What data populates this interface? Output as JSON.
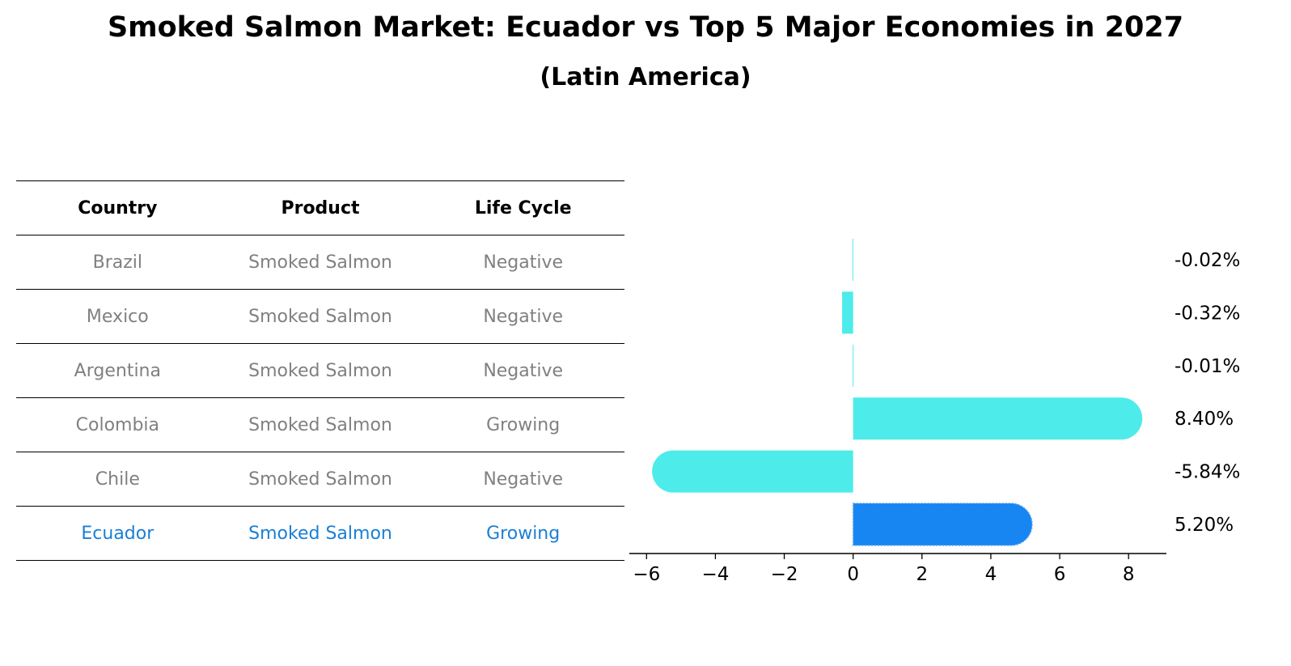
{
  "title": "Smoked Salmon Market: Ecuador vs Top 5 Major Economies in 2027",
  "subtitle": "(Latin America)",
  "colors": {
    "bar": "#4deceb",
    "highlight_bar": "#1785f2",
    "highlight_text": "#1a7fd6",
    "muted_text": "#808080"
  },
  "table": {
    "headers": [
      "Country",
      "Product",
      "Life Cycle"
    ],
    "rows": [
      {
        "country": "Brazil",
        "product": "Smoked Salmon",
        "life_cycle": "Negative"
      },
      {
        "country": "Mexico",
        "product": "Smoked Salmon",
        "life_cycle": "Negative"
      },
      {
        "country": "Argentina",
        "product": "Smoked Salmon",
        "life_cycle": "Negative"
      },
      {
        "country": "Colombia",
        "product": "Smoked Salmon",
        "life_cycle": "Growing"
      },
      {
        "country": "Chile",
        "product": "Smoked Salmon",
        "life_cycle": "Negative"
      },
      {
        "country": "Ecuador",
        "product": "Smoked Salmon",
        "life_cycle": "Growing",
        "highlight": true
      }
    ]
  },
  "chart_data": {
    "type": "bar",
    "orientation": "horizontal",
    "categories": [
      "Brazil",
      "Mexico",
      "Argentina",
      "Colombia",
      "Chile",
      "Ecuador"
    ],
    "values": [
      -0.02,
      -0.32,
      -0.01,
      8.4,
      -5.84,
      5.2
    ],
    "value_labels": [
      "-0.02%",
      "-0.32%",
      "-0.01%",
      "8.40%",
      "-5.84%",
      "5.20%"
    ],
    "highlight": "Ecuador",
    "xlim": [
      -6.5,
      9.1
    ],
    "xticks": [
      -6,
      -4,
      -2,
      0,
      2,
      4,
      6,
      8
    ],
    "xtick_labels": [
      "−6",
      "−4",
      "−2",
      "0",
      "2",
      "4",
      "6",
      "8"
    ],
    "title": "Smoked Salmon Market: Ecuador vs Top 5 Major Economies in 2027",
    "xlabel": "",
    "ylabel": "",
    "grid": false
  }
}
